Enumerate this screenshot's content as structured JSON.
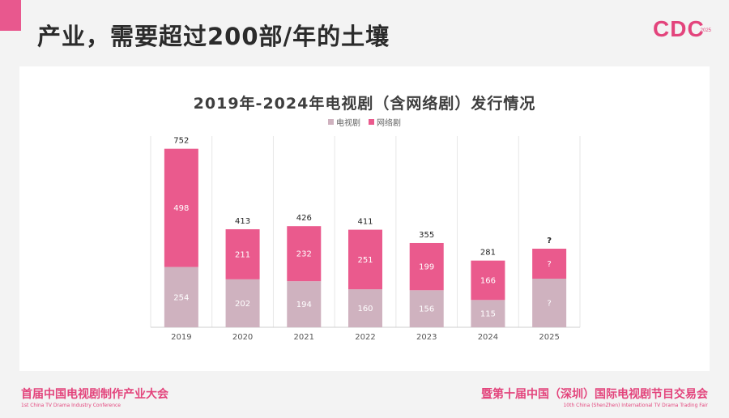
{
  "slide": {
    "title": "产业，需要超过200部/年的土壤",
    "logo": "CDC",
    "logo_year": "2025",
    "footer_left_main": "首届中国电视剧制作产业大会",
    "footer_left_sub": "1st China TV Drama Industry Conference",
    "footer_right_main": "暨第十届中国（深圳）国际电视剧节目交易会",
    "footer_right_sub": "10th China (ShenZhen) International TV Drama Trading Fair",
    "colors": {
      "accent": "#e3447c",
      "tv_series": "#cfb2bf",
      "web_series": "#ea5a8d"
    }
  },
  "chart_data": {
    "type": "bar",
    "stacked": true,
    "title": "2019年-2024年电视剧（含网络剧）发行情况",
    "categories": [
      "2019",
      "2020",
      "2021",
      "2022",
      "2023",
      "2024",
      "2025"
    ],
    "series": [
      {
        "name": "电视剧",
        "values": [
          254,
          202,
          194,
          160,
          156,
          115,
          null
        ],
        "labels": [
          "254",
          "202",
          "194",
          "160",
          "156",
          "115",
          "?"
        ]
      },
      {
        "name": "网络剧",
        "values": [
          498,
          211,
          232,
          251,
          199,
          166,
          null
        ],
        "labels": [
          "498",
          "211",
          "232",
          "251",
          "199",
          "166",
          "?"
        ]
      }
    ],
    "totals": [
      "752",
      "413",
      "426",
      "411",
      "355",
      "281",
      "?"
    ],
    "ylim": [
      0,
      800
    ],
    "grid": "vertical category separators",
    "legend": "top-center"
  }
}
